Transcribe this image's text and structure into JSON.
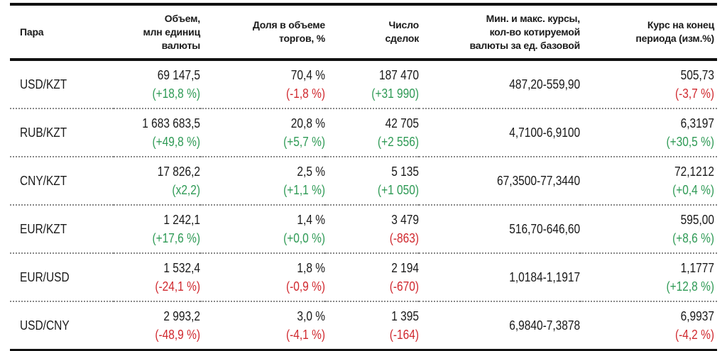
{
  "headers": {
    "pair": "Пара",
    "volume": [
      "Объем,",
      "млн единиц",
      "валюты"
    ],
    "share": [
      "Доля в объеме",
      "торгов, %"
    ],
    "deals": [
      "Число",
      "сделок"
    ],
    "range": [
      "Мин. и макс. курсы,",
      "кол-во котируемой",
      "валюты за ед. базовой"
    ],
    "rate": [
      "Курс на конец",
      "периода (изм.%)"
    ]
  },
  "colors": {
    "positive": "#2e9a55",
    "negative": "#d0282e"
  },
  "rows": [
    {
      "pair": "USD/KZT",
      "volume": "69 147,5",
      "volume_chg": "(+18,8 %)",
      "volume_dir": "up",
      "share": "70,4 %",
      "share_chg": "(-1,8 %)",
      "share_dir": "down",
      "deals": "187 470",
      "deals_chg": "(+31 990)",
      "deals_dir": "up",
      "range": "487,20-559,90",
      "rate": "505,73",
      "rate_chg": "(-3,7 %)",
      "rate_dir": "down"
    },
    {
      "pair": "RUB/KZT",
      "volume": "1 683 683,5",
      "volume_chg": "(+49,8 %)",
      "volume_dir": "up",
      "share": "20,8 %",
      "share_chg": "(+5,7 %)",
      "share_dir": "up",
      "deals": "42 705",
      "deals_chg": "(+2 556)",
      "deals_dir": "up",
      "range": "4,7100-6,9100",
      "rate": "6,3197",
      "rate_chg": "(+30,5 %)",
      "rate_dir": "up"
    },
    {
      "pair": "CNY/KZT",
      "volume": "17 826,2",
      "volume_chg": "(x2,2)",
      "volume_dir": "up",
      "share": "2,5 %",
      "share_chg": "(+1,1 %)",
      "share_dir": "up",
      "deals": "5 135",
      "deals_chg": "(+1 050)",
      "deals_dir": "up",
      "range": "67,3500-77,3440",
      "rate": "72,1212",
      "rate_chg": "(+0,4 %)",
      "rate_dir": "up"
    },
    {
      "pair": "EUR/KZT",
      "volume": "1 242,1",
      "volume_chg": "(+17,6 %)",
      "volume_dir": "up",
      "share": "1,4 %",
      "share_chg": "(+0,0 %)",
      "share_dir": "up",
      "deals": "3 479",
      "deals_chg": "(-863)",
      "deals_dir": "down",
      "range": "516,70-646,60",
      "rate": "595,00",
      "rate_chg": "(+8,6 %)",
      "rate_dir": "up"
    },
    {
      "pair": "EUR/USD",
      "volume": "1 532,4",
      "volume_chg": "(-24,1 %)",
      "volume_dir": "down",
      "share": "1,8 %",
      "share_chg": "(-0,9 %)",
      "share_dir": "down",
      "deals": "2 194",
      "deals_chg": "(-670)",
      "deals_dir": "down",
      "range": "1,0184-1,1917",
      "rate": "1,1777",
      "rate_chg": "(+12,8 %)",
      "rate_dir": "up"
    },
    {
      "pair": "USD/CNY",
      "volume": "2 993,2",
      "volume_chg": "(-48,9 %)",
      "volume_dir": "down",
      "share": "3,0 %",
      "share_chg": "(-4,1 %)",
      "share_dir": "down",
      "deals": "1 395",
      "deals_chg": "(-164)",
      "deals_dir": "down",
      "range": "6,9840-7,3878",
      "rate": "6,9937",
      "rate_chg": "(-4,2 %)",
      "rate_dir": "down"
    }
  ]
}
